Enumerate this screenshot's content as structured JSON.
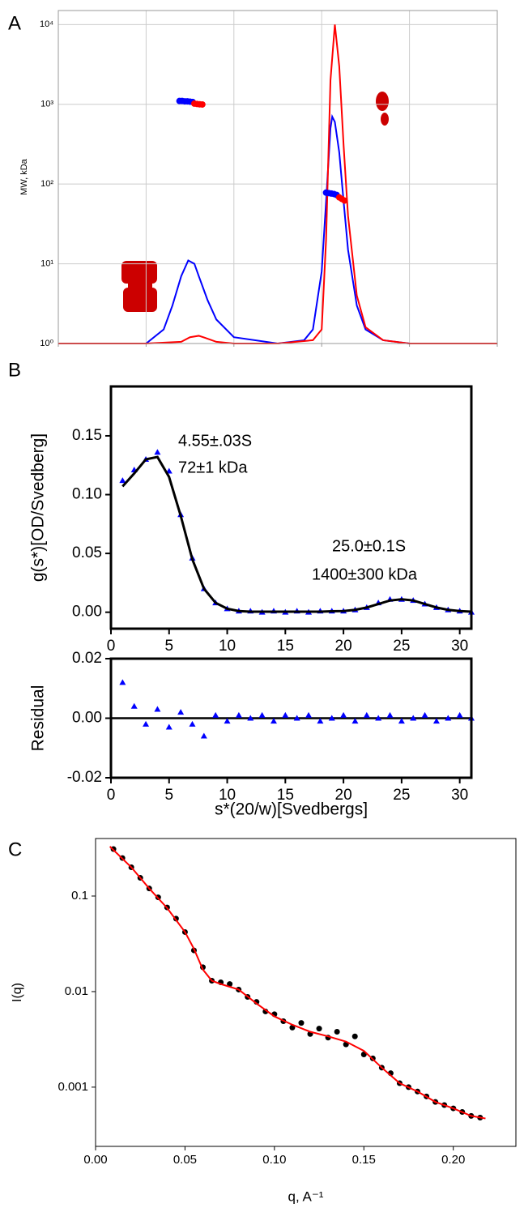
{
  "chart_data": [
    {
      "type": "line",
      "panel_label": "A",
      "y_label": "MW, kDa",
      "ylog": true,
      "grid": true,
      "xlim": [
        0,
        5
      ],
      "xticks": [
        0,
        1,
        2,
        3,
        4,
        5
      ],
      "ylim": [
        1,
        15000
      ],
      "yticks": [
        {
          "value": 1,
          "label": "10⁰"
        },
        {
          "value": 10,
          "label": "10¹"
        },
        {
          "value": 100,
          "label": "10²"
        },
        {
          "value": 1000,
          "label": "10³"
        },
        {
          "value": 10000,
          "label": "10⁴"
        }
      ],
      "series": [
        {
          "color": "#0000ff",
          "mode": "line",
          "x": [
            0,
            0.5,
            1,
            1.2,
            1.3,
            1.4,
            1.48,
            1.55,
            1.6,
            1.7,
            1.8,
            2,
            2.5,
            2.8,
            2.9,
            3,
            3.05,
            3.1,
            3.12,
            3.15,
            3.2,
            3.25,
            3.3,
            3.4,
            3.5,
            3.7,
            4,
            5
          ],
          "values": [
            1,
            1,
            1,
            1.5,
            3,
            7,
            11,
            10,
            7,
            3.5,
            2,
            1.2,
            1,
            1.1,
            1.5,
            8,
            60,
            500,
            700,
            600,
            250,
            60,
            15,
            3,
            1.5,
            1.1,
            1,
            1
          ]
        },
        {
          "color": "#ff0000",
          "mode": "line",
          "x": [
            0,
            1,
            1.4,
            1.5,
            1.6,
            1.7,
            1.8,
            2,
            2.5,
            2.9,
            3,
            3.05,
            3.1,
            3.15,
            3.2,
            3.25,
            3.3,
            3.4,
            3.5,
            3.7,
            4,
            5
          ],
          "values": [
            1,
            1,
            1.05,
            1.2,
            1.25,
            1.15,
            1.05,
            1,
            1,
            1.1,
            1.5,
            20,
            2000,
            10000,
            3000,
            300,
            40,
            4,
            1.6,
            1.1,
            1,
            1
          ]
        },
        {
          "color": "#0000ff",
          "mode": "markers",
          "marker": "circle",
          "x": [
            1.38,
            1.41,
            1.44,
            1.47,
            1.5,
            1.53,
            3.05,
            3.08,
            3.11,
            3.14,
            3.17
          ],
          "values": [
            1100,
            1100,
            1090,
            1090,
            1080,
            1070,
            78,
            77,
            76,
            75,
            73
          ]
        },
        {
          "color": "#ff0000",
          "mode": "markers",
          "marker": "circle",
          "x": [
            1.55,
            1.58,
            1.61,
            1.64,
            3.2,
            3.23,
            3.26
          ],
          "values": [
            1020,
            1010,
            1000,
            995,
            68,
            65,
            62
          ]
        }
      ]
    },
    {
      "type": "line",
      "panel_label": "B",
      "y_label": "g(s*)[OD/Svedberg]",
      "annotations": [
        "4.55±.03S",
        "72±1 kDa",
        "25.0±0.1S",
        "1400±300 kDa"
      ],
      "xlim": [
        0,
        31
      ],
      "xticks": [
        0,
        5,
        10,
        15,
        20,
        25,
        30
      ],
      "ylim": [
        -0.014,
        0.192
      ],
      "yticks": [
        {
          "value": 0,
          "label": "0.00"
        },
        0.05,
        {
          "value": 0.1,
          "label": "0.10"
        },
        0.15
      ],
      "series": [
        {
          "color": "#0000ff",
          "mode": "markers",
          "marker": "triangle",
          "x": [
            1,
            2,
            3,
            4,
            5,
            6,
            7,
            8,
            9,
            10,
            11,
            12,
            13,
            14,
            15,
            16,
            17,
            18,
            19,
            20,
            21,
            22,
            23,
            24,
            25,
            26,
            27,
            28,
            29,
            30,
            31
          ],
          "values": [
            0.112,
            0.121,
            0.13,
            0.136,
            0.12,
            0.083,
            0.046,
            0.02,
            0.008,
            0.003,
            0.001,
            0.001,
            0,
            0.001,
            0,
            0.001,
            0,
            0.001,
            0.001,
            0.001,
            0.002,
            0.004,
            0.008,
            0.011,
            0.011,
            0.01,
            0.007,
            0.004,
            0.002,
            0.001,
            0
          ]
        },
        {
          "color": "#000000",
          "mode": "line",
          "x": [
            1,
            2,
            3,
            4,
            5,
            6,
            7,
            8,
            9,
            10,
            11,
            12,
            13,
            14,
            15,
            16,
            17,
            18,
            19,
            20,
            21,
            22,
            23,
            24,
            25,
            26,
            27,
            28,
            29,
            30,
            31
          ],
          "values": [
            0.107,
            0.118,
            0.13,
            0.132,
            0.115,
            0.082,
            0.045,
            0.02,
            0.008,
            0.003,
            0.001,
            0.0005,
            0.0005,
            0.0005,
            0.0005,
            0.0005,
            0.0005,
            0.0005,
            0.0008,
            0.001,
            0.002,
            0.004,
            0.007,
            0.01,
            0.011,
            0.01,
            0.007,
            0.004,
            0.002,
            0.001,
            0.0005
          ]
        }
      ]
    },
    {
      "type": "scatter",
      "y_label": "Residual",
      "x_label": "s*(20/w)[Svedbergs]",
      "xlim": [
        0,
        31
      ],
      "xticks": [
        0,
        5,
        10,
        15,
        20,
        25,
        30
      ],
      "ylim": [
        -0.02,
        0.02
      ],
      "yticks": [
        -0.02,
        {
          "value": 0,
          "label": "0.00"
        },
        0.02
      ],
      "series": [
        {
          "color": "#0000ff",
          "mode": "markers",
          "marker": "triangle",
          "x": [
            1,
            2,
            3,
            4,
            5,
            6,
            7,
            8,
            9,
            10,
            11,
            12,
            13,
            14,
            15,
            16,
            17,
            18,
            19,
            20,
            21,
            22,
            23,
            24,
            25,
            26,
            27,
            28,
            29,
            30,
            31
          ],
          "values": [
            0.012,
            0.004,
            -0.002,
            0.003,
            -0.003,
            0.002,
            -0.002,
            -0.006,
            0.001,
            -0.001,
            0.001,
            0,
            0.001,
            -0.001,
            0.001,
            0,
            0.001,
            -0.001,
            0,
            0.001,
            -0.001,
            0.001,
            0,
            0.001,
            -0.001,
            0,
            0.001,
            -0.001,
            0,
            0.001,
            0
          ]
        }
      ]
    },
    {
      "type": "scatter",
      "panel_label": "C",
      "y_label": "I(q)",
      "x_label": "q, A⁻¹",
      "ylog": true,
      "xlim": [
        0,
        0.235
      ],
      "xticks": [
        {
          "value": 0,
          "label": "0.00"
        },
        0.05,
        {
          "value": 0.1,
          "label": "0.10"
        },
        0.15,
        {
          "value": 0.2,
          "label": "0.20"
        }
      ],
      "ylim": [
        0.00024,
        0.4
      ],
      "yticks": [
        0.001,
        0.01,
        0.1
      ],
      "series": [
        {
          "color": "#000000",
          "mode": "markers",
          "marker": "circle",
          "x": [
            0.01,
            0.015,
            0.02,
            0.025,
            0.03,
            0.035,
            0.04,
            0.045,
            0.05,
            0.055,
            0.06,
            0.065,
            0.07,
            0.075,
            0.08,
            0.085,
            0.09,
            0.095,
            0.1,
            0.105,
            0.11,
            0.115,
            0.12,
            0.125,
            0.13,
            0.135,
            0.14,
            0.145,
            0.15,
            0.155,
            0.16,
            0.165,
            0.17,
            0.175,
            0.18,
            0.185,
            0.19,
            0.195,
            0.2,
            0.205,
            0.21,
            0.215
          ],
          "values": [
            0.31,
            0.25,
            0.2,
            0.155,
            0.12,
            0.097,
            0.076,
            0.058,
            0.042,
            0.027,
            0.018,
            0.013,
            0.0125,
            0.012,
            0.0105,
            0.0088,
            0.0078,
            0.0062,
            0.0058,
            0.0049,
            0.0042,
            0.0047,
            0.0036,
            0.0041,
            0.0033,
            0.0038,
            0.0028,
            0.0034,
            0.0022,
            0.002,
            0.0016,
            0.0014,
            0.0011,
            0.001,
            0.0009,
            0.0008,
            0.0007,
            0.00065,
            0.0006,
            0.00055,
            0.0005,
            0.00048
          ]
        },
        {
          "color": "#ff0000",
          "mode": "line",
          "x": [
            0.008,
            0.02,
            0.03,
            0.04,
            0.05,
            0.055,
            0.06,
            0.065,
            0.07,
            0.08,
            0.09,
            0.1,
            0.11,
            0.12,
            0.13,
            0.14,
            0.15,
            0.16,
            0.17,
            0.18,
            0.19,
            0.2,
            0.21,
            0.218
          ],
          "values": [
            0.33,
            0.2,
            0.12,
            0.075,
            0.042,
            0.028,
            0.017,
            0.013,
            0.012,
            0.0105,
            0.0075,
            0.0055,
            0.0045,
            0.0038,
            0.0034,
            0.003,
            0.0024,
            0.0016,
            0.0011,
            0.0009,
            0.0007,
            0.0006,
            0.0005,
            0.00047
          ]
        }
      ]
    }
  ]
}
